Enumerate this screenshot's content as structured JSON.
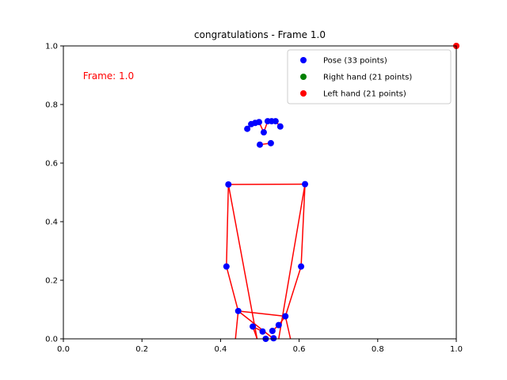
{
  "chart_data": {
    "type": "scatter",
    "title": "congratulations - Frame 1.0",
    "xlabel": "",
    "ylabel": "",
    "xlim": [
      0.0,
      1.0
    ],
    "ylim": [
      0.0,
      1.0
    ],
    "xticks": [
      "0.0",
      "0.2",
      "0.4",
      "0.6",
      "0.8",
      "1.0"
    ],
    "yticks": [
      "0.0",
      "0.2",
      "0.4",
      "0.6",
      "0.8",
      "1.0"
    ],
    "grid": false,
    "legend_position": "top-right",
    "annotation": {
      "text": "Frame: 1.0",
      "x": 0.05,
      "y": 0.9,
      "color": "#ff0000"
    },
    "series": [
      {
        "name": "Pose (33 points)",
        "color": "#0000ff",
        "points": [
          [
            0.5,
            0.663
          ],
          [
            0.528,
            0.668
          ],
          [
            0.51,
            0.705
          ],
          [
            0.468,
            0.717
          ],
          [
            0.478,
            0.733
          ],
          [
            0.488,
            0.737
          ],
          [
            0.498,
            0.74
          ],
          [
            0.52,
            0.743
          ],
          [
            0.53,
            0.743
          ],
          [
            0.54,
            0.743
          ],
          [
            0.552,
            0.725
          ],
          [
            0.42,
            0.527
          ],
          [
            0.615,
            0.528
          ],
          [
            0.415,
            0.247
          ],
          [
            0.605,
            0.247
          ],
          [
            0.445,
            0.095
          ],
          [
            0.565,
            0.077
          ],
          [
            0.482,
            0.042
          ],
          [
            0.507,
            0.025
          ],
          [
            0.532,
            0.027
          ],
          [
            0.548,
            0.047
          ],
          [
            0.535,
            0.002
          ],
          [
            0.515,
            0.0
          ]
        ]
      },
      {
        "name": "Right hand (21 points)",
        "color": "#008000",
        "points": []
      },
      {
        "name": "Left hand (21 points)",
        "color": "#ff0000",
        "points": [
          [
            1.0,
            1.0
          ]
        ]
      }
    ],
    "connections": {
      "color": "#ff0000",
      "segments": [
        [
          [
            0.468,
            0.717
          ],
          [
            0.478,
            0.733
          ]
        ],
        [
          [
            0.478,
            0.733
          ],
          [
            0.488,
            0.737
          ]
        ],
        [
          [
            0.488,
            0.737
          ],
          [
            0.498,
            0.74
          ]
        ],
        [
          [
            0.52,
            0.743
          ],
          [
            0.53,
            0.743
          ]
        ],
        [
          [
            0.53,
            0.743
          ],
          [
            0.54,
            0.743
          ]
        ],
        [
          [
            0.54,
            0.743
          ],
          [
            0.552,
            0.725
          ]
        ],
        [
          [
            0.498,
            0.74
          ],
          [
            0.51,
            0.705
          ]
        ],
        [
          [
            0.51,
            0.705
          ],
          [
            0.52,
            0.743
          ]
        ],
        [
          [
            0.5,
            0.663
          ],
          [
            0.528,
            0.668
          ]
        ],
        [
          [
            0.42,
            0.527
          ],
          [
            0.615,
            0.528
          ]
        ],
        [
          [
            0.42,
            0.527
          ],
          [
            0.415,
            0.247
          ]
        ],
        [
          [
            0.415,
            0.247
          ],
          [
            0.445,
            0.095
          ]
        ],
        [
          [
            0.615,
            0.528
          ],
          [
            0.605,
            0.247
          ]
        ],
        [
          [
            0.605,
            0.247
          ],
          [
            0.565,
            0.077
          ]
        ],
        [
          [
            0.42,
            0.527
          ],
          [
            0.493,
            0.0
          ]
        ],
        [
          [
            0.615,
            0.528
          ],
          [
            0.548,
            0.0
          ]
        ],
        [
          [
            0.445,
            0.095
          ],
          [
            0.565,
            0.077
          ]
        ],
        [
          [
            0.445,
            0.095
          ],
          [
            0.535,
            0.0
          ]
        ],
        [
          [
            0.565,
            0.077
          ],
          [
            0.548,
            0.047
          ]
        ],
        [
          [
            0.548,
            0.047
          ],
          [
            0.532,
            0.027
          ]
        ],
        [
          [
            0.482,
            0.042
          ],
          [
            0.507,
            0.025
          ]
        ],
        [
          [
            0.482,
            0.042
          ],
          [
            0.493,
            0.0
          ]
        ],
        [
          [
            0.565,
            0.077
          ],
          [
            0.578,
            0.0
          ]
        ],
        [
          [
            0.445,
            0.095
          ],
          [
            0.438,
            0.0
          ]
        ]
      ]
    }
  }
}
